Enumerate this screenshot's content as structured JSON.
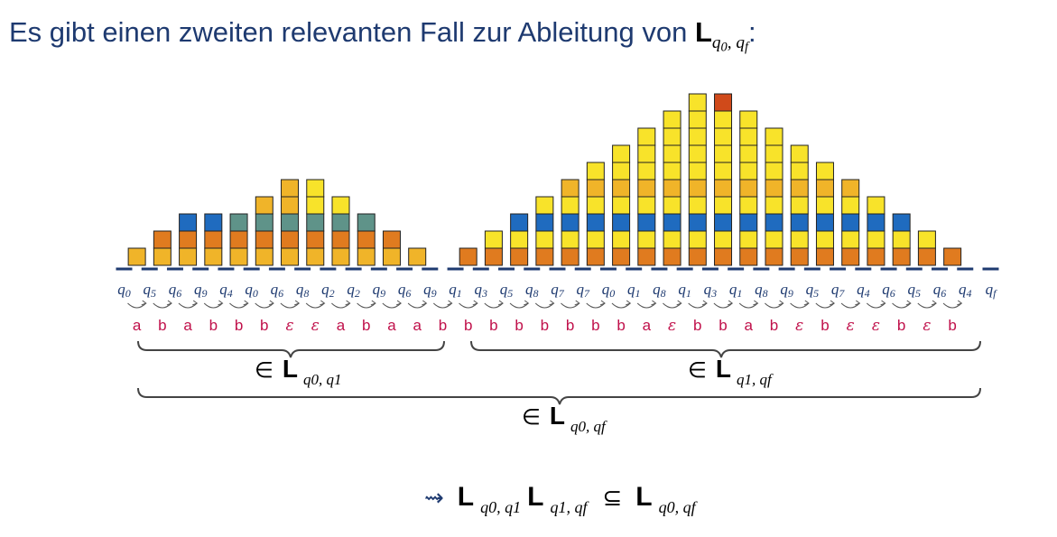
{
  "title": {
    "text": "Es gibt einen zweiten relevanten Fall zur Ableitung von",
    "L": "L",
    "sub_a": "q",
    "sub_a_idx": "0",
    "sep": ", ",
    "sub_b": "q",
    "sub_b_idx": "f",
    "colon": ":"
  },
  "colors": {
    "orange": "#e07b1f",
    "gold": "#f0b429",
    "yellow": "#f8e32a",
    "blue": "#1f6bbf",
    "teal": "#5f9389",
    "red": "#d04a1a",
    "letter": "#c0104a",
    "bar": "#1e3a70",
    "state": "#1e3a70"
  },
  "states": [
    "q0",
    "q5",
    "q6",
    "q9",
    "q4",
    "q0",
    "q6",
    "q8",
    "q2",
    "q2",
    "q9",
    "q6",
    "q9",
    "q1",
    "q3",
    "q5",
    "q8",
    "q7",
    "q7",
    "q0",
    "q1",
    "q8",
    "q1",
    "q3",
    "q1",
    "q8",
    "q9",
    "q5",
    "q7",
    "q4",
    "q6",
    "q5",
    "q6",
    "q4",
    "qf"
  ],
  "letters": [
    "a",
    "b",
    "a",
    "b",
    "b",
    "b",
    "ε",
    "ε",
    "a",
    "b",
    "a",
    "a",
    "b",
    "b",
    "b",
    "b",
    "b",
    "b",
    "b",
    "b",
    "a",
    "ε",
    "b",
    "b",
    "a",
    "b",
    "ε",
    "b",
    "ε",
    "ε",
    "b",
    "ε",
    "b"
  ],
  "stacks": [
    [
      "gold"
    ],
    [
      "gold",
      "orange"
    ],
    [
      "gold",
      "orange",
      "blue"
    ],
    [
      "gold",
      "orange",
      "blue"
    ],
    [
      "gold",
      "orange",
      "teal"
    ],
    [
      "gold",
      "orange",
      "teal",
      "gold"
    ],
    [
      "gold",
      "orange",
      "teal",
      "gold",
      "gold"
    ],
    [
      "gold",
      "orange",
      "teal",
      "yellow",
      "yellow"
    ],
    [
      "gold",
      "orange",
      "teal",
      "yellow"
    ],
    [
      "gold",
      "orange",
      "teal"
    ],
    [
      "gold",
      "orange"
    ],
    [
      "gold"
    ],
    [],
    [
      "orange"
    ],
    [
      "orange",
      "yellow"
    ],
    [
      "orange",
      "yellow",
      "blue"
    ],
    [
      "orange",
      "yellow",
      "blue",
      "yellow"
    ],
    [
      "orange",
      "yellow",
      "blue",
      "yellow",
      "gold"
    ],
    [
      "orange",
      "yellow",
      "blue",
      "yellow",
      "gold",
      "yellow"
    ],
    [
      "orange",
      "yellow",
      "blue",
      "yellow",
      "gold",
      "yellow",
      "yellow"
    ],
    [
      "orange",
      "yellow",
      "blue",
      "yellow",
      "gold",
      "yellow",
      "yellow",
      "yellow"
    ],
    [
      "orange",
      "yellow",
      "blue",
      "yellow",
      "gold",
      "yellow",
      "yellow",
      "yellow",
      "yellow"
    ],
    [
      "orange",
      "yellow",
      "blue",
      "yellow",
      "gold",
      "yellow",
      "yellow",
      "yellow",
      "yellow",
      "yellow"
    ],
    [
      "orange",
      "yellow",
      "blue",
      "yellow",
      "gold",
      "yellow",
      "yellow",
      "yellow",
      "yellow",
      "red"
    ],
    [
      "orange",
      "yellow",
      "blue",
      "yellow",
      "gold",
      "yellow",
      "yellow",
      "yellow",
      "yellow"
    ],
    [
      "orange",
      "yellow",
      "blue",
      "yellow",
      "gold",
      "yellow",
      "yellow",
      "yellow"
    ],
    [
      "orange",
      "yellow",
      "blue",
      "yellow",
      "gold",
      "yellow",
      "yellow"
    ],
    [
      "orange",
      "yellow",
      "blue",
      "yellow",
      "gold",
      "yellow"
    ],
    [
      "orange",
      "yellow",
      "blue",
      "yellow",
      "gold"
    ],
    [
      "orange",
      "yellow",
      "blue",
      "yellow"
    ],
    [
      "orange",
      "yellow",
      "blue"
    ],
    [
      "orange",
      "yellow"
    ],
    [
      "orange"
    ]
  ],
  "brace_left": {
    "prefix": "∈",
    "L": "L",
    "sub": "q0, q1"
  },
  "brace_right": {
    "prefix": "∈",
    "L": "L",
    "sub": "q1, qf"
  },
  "brace_full": {
    "prefix": "∈",
    "L": "L",
    "sub": "q0, qf"
  },
  "conclusion": {
    "arrow": "⇝",
    "L1": "L",
    "sub1": "q0, q1",
    "L2": "L",
    "sub2": "q1, qf",
    "subset": "⊆",
    "L3": "L",
    "sub3": "q0, qf"
  }
}
